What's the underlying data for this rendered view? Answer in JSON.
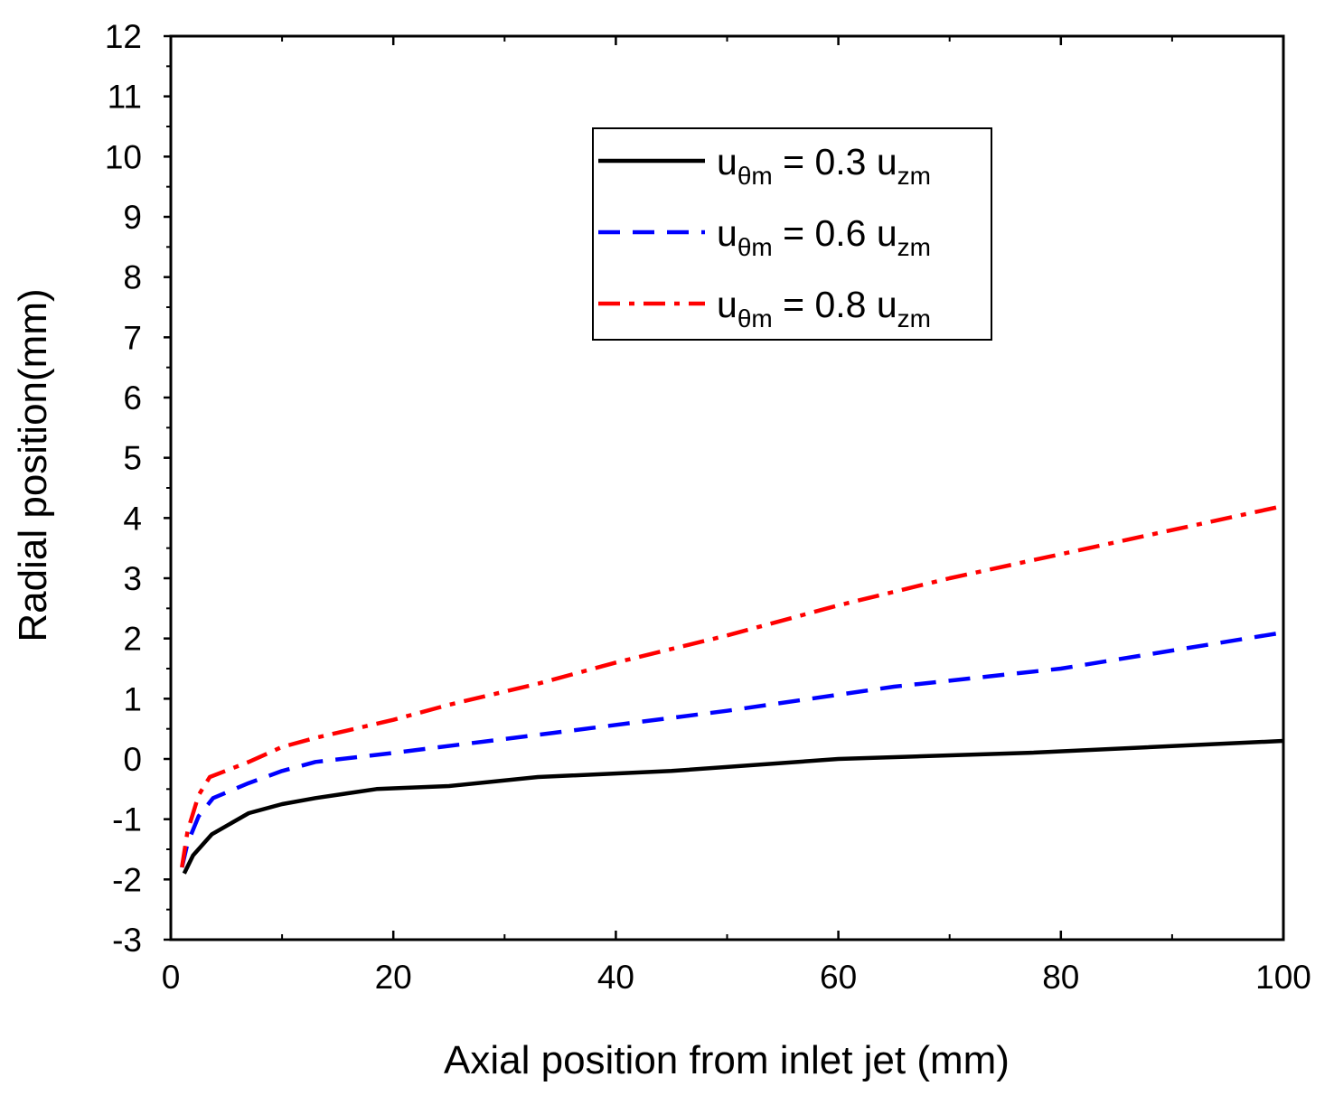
{
  "chart_data": {
    "type": "line",
    "title": "",
    "xlabel": "Axial position from inlet jet (mm)",
    "ylabel": "Radial position(mm)",
    "xlim": [
      0,
      100
    ],
    "ylim": [
      -3,
      12
    ],
    "x_ticks": [
      0,
      20,
      40,
      60,
      80,
      100
    ],
    "x_tick_labels": [
      "0",
      "20",
      "40",
      "60",
      "80",
      "100"
    ],
    "y_ticks": [
      -3,
      -2,
      -1,
      0,
      1,
      2,
      3,
      4,
      5,
      6,
      7,
      8,
      9,
      10,
      11,
      12
    ],
    "y_tick_labels": [
      "-3",
      "-2",
      "-1",
      "0",
      "1",
      "2",
      "3",
      "4",
      "5",
      "6",
      "7",
      "8",
      "9",
      "10",
      "11",
      "12"
    ],
    "grid": false,
    "legend_position": "top-center",
    "series": [
      {
        "name": "u_θm = 0.3 u_zm",
        "legend": {
          "base": "u",
          "sub": "θm",
          "mid": " = 0.3 u",
          "sub2": "zm"
        },
        "color": "#000000",
        "style": "solid",
        "x": [
          1.2,
          2,
          3.7,
          7,
          10,
          13,
          18.5,
          25,
          33,
          45,
          60,
          77,
          100
        ],
        "y": [
          -1.9,
          -1.6,
          -1.25,
          -0.9,
          -0.75,
          -0.65,
          -0.5,
          -0.45,
          -0.3,
          -0.2,
          0.0,
          0.1,
          0.3
        ]
      },
      {
        "name": "u_θm = 0.6 u_zm",
        "legend": {
          "base": "u",
          "sub": "θm",
          "mid": " = 0.6 u",
          "sub2": "zm"
        },
        "color": "#0000ff",
        "style": "dashed",
        "x": [
          1,
          1.5,
          2.5,
          3.8,
          7,
          10,
          13,
          20,
          33,
          50,
          65,
          80,
          100
        ],
        "y": [
          -1.8,
          -1.4,
          -0.95,
          -0.65,
          -0.4,
          -0.2,
          -0.05,
          0.1,
          0.4,
          0.8,
          1.2,
          1.5,
          2.1
        ]
      },
      {
        "name": "u_θm = 0.8 u_zm",
        "legend": {
          "base": "u",
          "sub": "θm",
          "mid": " = 0.8 u",
          "sub2": "zm"
        },
        "color": "#ff0000",
        "style": "dashdot",
        "x": [
          1,
          1.5,
          2.5,
          3.5,
          7,
          10,
          13,
          20,
          25,
          33,
          40,
          50,
          60,
          70,
          80,
          100
        ],
        "y": [
          -1.8,
          -1.2,
          -0.6,
          -0.3,
          -0.05,
          0.2,
          0.35,
          0.65,
          0.9,
          1.25,
          1.6,
          2.05,
          2.55,
          3.0,
          3.4,
          4.2
        ]
      }
    ]
  }
}
